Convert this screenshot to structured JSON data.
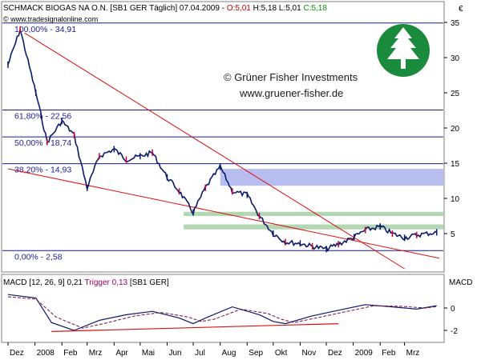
{
  "header": {
    "instrument": "SCHMACK BIOGAS NA O.N. [SB1 GER  Täglich] 07.04.2009 - ",
    "open": "O:5,01",
    "high_low": " H:5,18 L:5,01 ",
    "close": "C:5,18",
    "colors": {
      "open": "#cc0000",
      "close": "#009900"
    }
  },
  "watermark": "© www.tradesignalonline.com",
  "currency": "€",
  "copyright": "© Grüner Fisher Investments",
  "website": "www.gruener-fisher.de",
  "logo": {
    "icon": "tree-icon",
    "color": "#1a8a3c"
  },
  "macd": {
    "label": "MACD [12, 26, 9] 0,21 ",
    "trigger": "Trigger 0,13",
    "suffix": " [SB1 GER]",
    "axis_title": "MACD",
    "trigger_color": "#990066"
  },
  "chart_data": [
    {
      "type": "line",
      "title": "SCHMACK BIOGAS NA O.N. [SB1 GER Täglich] 07.04.2009",
      "ylabel": "€",
      "ylim": [
        0,
        37
      ],
      "yticks": [
        5,
        10,
        15,
        20,
        25,
        30,
        35
      ],
      "grid": false,
      "fib_levels": [
        {
          "label": "100,00% - 34,91",
          "value": 34.91
        },
        {
          "label": "61,80% - 22,56",
          "value": 22.56
        },
        {
          "label": "50,00% - 18,74",
          "value": 18.74
        },
        {
          "label": "38,20% - 14,93",
          "value": 14.93
        },
        {
          "label": "0,00% - 2,58",
          "value": 2.58
        }
      ],
      "x_labels": [
        "Dez",
        "2008",
        "Feb",
        "Mrz",
        "Apr",
        "Mai",
        "Jun",
        "Jul",
        "Aug",
        "Sep",
        "Okt",
        "Nov",
        "Dez",
        "2009",
        "Feb",
        "Mrz"
      ],
      "series": [
        {
          "x": [
            "2007-12-01",
            "2007-12-15",
            "2008-01-02",
            "2008-01-15",
            "2008-02-01",
            "2008-02-15",
            "2008-03-01",
            "2008-03-15",
            "2008-04-01",
            "2008-04-15",
            "2008-05-01",
            "2008-05-15",
            "2008-06-01",
            "2008-06-15",
            "2008-07-01",
            "2008-07-15",
            "2008-08-01",
            "2008-08-15",
            "2008-09-01",
            "2008-09-15",
            "2008-10-01",
            "2008-10-15",
            "2008-11-01",
            "2008-11-15",
            "2008-12-01",
            "2008-12-15",
            "2009-01-02",
            "2009-01-15",
            "2009-02-01",
            "2009-02-15",
            "2009-03-01",
            "2009-03-15",
            "2009-04-07"
          ],
          "values": [
            29,
            34,
            25,
            18,
            21,
            19,
            11.5,
            16,
            17,
            15.5,
            16,
            16.5,
            13,
            11,
            8,
            11.5,
            14.5,
            11,
            10.5,
            7.5,
            5,
            3.8,
            3.6,
            3.2,
            2.8,
            3.5,
            4.5,
            5.5,
            6,
            5,
            4.4,
            4.8,
            5.18
          ]
        }
      ],
      "trendlines": [
        {
          "from": [
            "2007-12-20",
            33.5
          ],
          "to": [
            "2009-03-01",
            0
          ]
        },
        {
          "from": [
            "2007-12-01",
            14.2
          ],
          "to": [
            "2009-04-10",
            1.5
          ]
        }
      ],
      "zones": [
        {
          "y": [
            11.8,
            14.2
          ],
          "x_from": "2008-08-01",
          "color": "#b8bff0"
        },
        {
          "y": [
            7.5,
            8.1
          ],
          "x_from": "2008-06-20",
          "color": "#b3d6b3"
        },
        {
          "y": [
            5.6,
            6.3
          ],
          "x_from": "2008-06-20",
          "color": "#b3d6b3"
        }
      ]
    },
    {
      "type": "line",
      "title": "MACD [12, 26, 9]",
      "ylabel": "MACD",
      "ylim": [
        -3,
        1.7
      ],
      "yticks": [
        -2,
        0
      ],
      "series": [
        {
          "name": "MACD",
          "x": [
            "2007-12-01",
            "2008-01-02",
            "2008-01-20",
            "2008-02-15",
            "2008-03-15",
            "2008-04-15",
            "2008-05-15",
            "2008-06-15",
            "2008-07-01",
            "2008-07-15",
            "2008-08-15",
            "2008-09-15",
            "2008-10-01",
            "2008-10-15",
            "2008-11-15",
            "2008-12-15",
            "2009-01-15",
            "2009-02-15",
            "2009-03-15",
            "2009-04-07"
          ],
          "values": [
            1.2,
            0.9,
            -1.3,
            -2.0,
            -1.1,
            -0.6,
            -0.3,
            -0.9,
            -1.4,
            -0.9,
            0.1,
            -0.6,
            -1.2,
            -1.4,
            -0.7,
            -0.2,
            0.3,
            0.1,
            -0.1,
            0.21
          ]
        },
        {
          "name": "Trigger",
          "x": [
            "2007-12-01",
            "2008-01-02",
            "2008-01-25",
            "2008-02-25",
            "2008-03-25",
            "2008-04-25",
            "2008-05-25",
            "2008-06-25",
            "2008-07-10",
            "2008-07-25",
            "2008-08-25",
            "2008-09-25",
            "2008-10-10",
            "2008-10-25",
            "2008-11-25",
            "2008-12-25",
            "2009-01-25",
            "2009-02-25",
            "2009-03-25",
            "2009-04-07"
          ],
          "values": [
            1.0,
            0.8,
            -0.8,
            -1.8,
            -1.3,
            -0.7,
            -0.4,
            -0.8,
            -1.2,
            -1.0,
            -0.1,
            -0.5,
            -1.0,
            -1.3,
            -0.8,
            -0.3,
            0.2,
            0.15,
            0.0,
            0.13
          ]
        }
      ],
      "trendlines": [
        {
          "from": [
            "2008-01-20",
            -2.1
          ],
          "to": [
            "2008-12-15",
            -1.4
          ]
        }
      ]
    }
  ]
}
